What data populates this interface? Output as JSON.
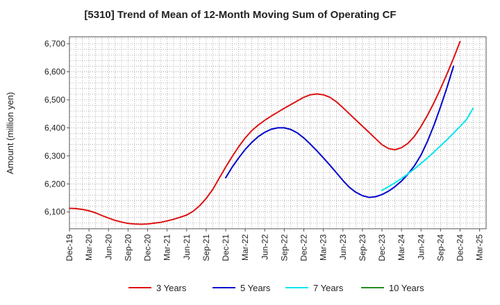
{
  "chart_data": {
    "type": "line",
    "title": "[5310]  Trend of Mean of 12-Month Moving Sum of Operating CF",
    "xlabel": "",
    "ylabel": "Amount (million yen)",
    "ylim": [
      6040,
      6725
    ],
    "yticks": [
      6100,
      6200,
      6300,
      6400,
      6500,
      6600,
      6700
    ],
    "ytick_labels": [
      "6,100",
      "6,200",
      "6,300",
      "6,400",
      "6,500",
      "6,600",
      "6,700"
    ],
    "x_start": "Dec-19",
    "x_months": 64,
    "xtick_labels": [
      "Dec-19",
      "Mar-20",
      "Jun-20",
      "Sep-20",
      "Dec-20",
      "Mar-21",
      "Jun-21",
      "Sep-21",
      "Dec-21",
      "Mar-22",
      "Jun-22",
      "Sep-22",
      "Dec-22",
      "Mar-23",
      "Jun-23",
      "Sep-23",
      "Dec-23",
      "Mar-24",
      "Jun-24",
      "Sep-24",
      "Dec-24",
      "Mar-25"
    ],
    "grid": true,
    "legend_position": "bottom",
    "series": [
      {
        "name": "3 Years",
        "color": "#dd1111",
        "start_month": 0,
        "values": [
          6113,
          6112,
          6109,
          6104,
          6097,
          6087,
          6078,
          6070,
          6064,
          6059,
          6057,
          6056,
          6057,
          6060,
          6063,
          6068,
          6074,
          6081,
          6089,
          6102,
          6122,
          6148,
          6180,
          6220,
          6260,
          6298,
          6333,
          6364,
          6390,
          6410,
          6427,
          6442,
          6456,
          6470,
          6483,
          6496,
          6509,
          6518,
          6521,
          6518,
          6509,
          6493,
          6472,
          6450,
          6428,
          6406,
          6384,
          6362,
          6340,
          6326,
          6322,
          6329,
          6345,
          6370,
          6405,
          6445,
          6490,
          6540,
          6593,
          6648,
          6708
        ]
      },
      {
        "name": "5 Years",
        "color": "#0000cc",
        "start_month": 24,
        "values": [
          6222,
          6260,
          6293,
          6323,
          6348,
          6369,
          6384,
          6395,
          6400,
          6400,
          6394,
          6382,
          6364,
          6342,
          6318,
          6293,
          6267,
          6240,
          6212,
          6188,
          6170,
          6158,
          6152,
          6154,
          6162,
          6174,
          6190,
          6210,
          6235,
          6265,
          6303,
          6352,
          6410,
          6475,
          6545,
          6620
        ]
      },
      {
        "name": "7 Years",
        "color": "#00e5ee",
        "start_month": 48,
        "values": [
          6177,
          6190,
          6204,
          6219,
          6236,
          6254,
          6273,
          6293,
          6314,
          6336,
          6358,
          6381,
          6405,
          6430,
          6470
        ]
      },
      {
        "name": "10 Years",
        "color": "#228b22",
        "start_month": 0,
        "values": []
      }
    ]
  }
}
